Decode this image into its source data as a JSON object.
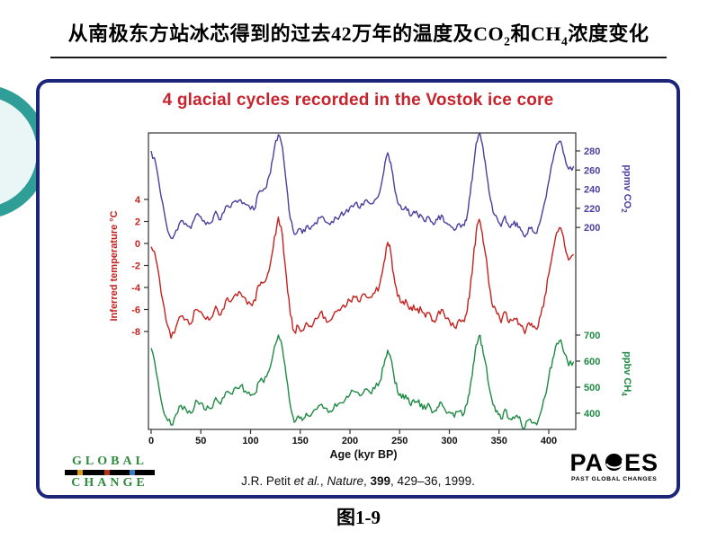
{
  "page": {
    "title": {
      "pre": "从南极东方站冰芯得到的过去42万年的温度及CO",
      "sub1": "2",
      "mid": "和CH",
      "sub2": "4",
      "post": "浓度变化"
    },
    "figure_caption": {
      "label": "图",
      "number": "1-9"
    }
  },
  "panel": {
    "chart_title": "4 glacial cycles recorded in the Vostok ice core",
    "citation": {
      "author": "J.R. Petit ",
      "etal": "et al.",
      "sep1": ", ",
      "journal": "Nature",
      "sep2": ", ",
      "volume": "399",
      "post": ", 429–36, 1999."
    },
    "logos": {
      "global_change": {
        "line1": "GLOBAL",
        "line2": "CHANGE"
      },
      "pages": {
        "name_pre": "PA",
        "name_post": "ES",
        "subtitle": "PAST GLOBAL CHANGES"
      }
    }
  },
  "chart_data": {
    "type": "line",
    "title": "4 glacial cycles recorded in the Vostok ice core",
    "title_color": "#c8232c",
    "grid": false,
    "legend": false,
    "x_axis": {
      "label": "Age (kyr BP)",
      "ticks": [
        0,
        50,
        100,
        150,
        200,
        250,
        300,
        350,
        400
      ],
      "range": [
        0,
        427
      ]
    },
    "axes": {
      "temperature": {
        "label": "Inferred temperature °C",
        "color": "#c5221f",
        "side": "left",
        "ticks": [
          4,
          2,
          0,
          -2,
          -4,
          -6,
          -8
        ],
        "range": [
          -9.5,
          4.5
        ]
      },
      "co2": {
        "label_pre": "ppmv CO",
        "label_sub": "2",
        "color": "#4a3f9f",
        "side": "right",
        "ticks": [
          280,
          260,
          240,
          220,
          200
        ],
        "range": [
          180,
          300
        ]
      },
      "ch4": {
        "label_pre": "ppbv CH",
        "label_sub": "4",
        "color": "#1e8a43",
        "side": "right",
        "ticks": [
          700,
          600,
          500,
          400
        ],
        "range": [
          340,
          720
        ]
      }
    },
    "ages": [
      0,
      5,
      10,
      15,
      20,
      25,
      30,
      35,
      40,
      45,
      50,
      55,
      60,
      65,
      70,
      75,
      80,
      85,
      90,
      95,
      100,
      105,
      108,
      112,
      116,
      120,
      124,
      128,
      132,
      136,
      140,
      144,
      148,
      152,
      156,
      160,
      165,
      170,
      175,
      180,
      185,
      190,
      195,
      200,
      205,
      210,
      215,
      220,
      225,
      230,
      234,
      238,
      241,
      244,
      248,
      252,
      256,
      260,
      264,
      268,
      272,
      276,
      280,
      284,
      288,
      292,
      296,
      300,
      305,
      310,
      315,
      318,
      321,
      324,
      327,
      330,
      333,
      336,
      340,
      344,
      348,
      352,
      356,
      360,
      364,
      368,
      372,
      376,
      380,
      384,
      388,
      392,
      396,
      400,
      404,
      408,
      412,
      416,
      420,
      425
    ],
    "series": [
      {
        "id": "co2",
        "name": "CO2 concentration (ppmv)",
        "axis": "co2",
        "color": "#4a3f9f",
        "values": [
          280,
          265,
          232,
          205,
          189,
          197,
          207,
          204,
          199,
          213,
          211,
          203,
          205,
          217,
          208,
          222,
          221,
          228,
          229,
          224,
          219,
          221,
          236,
          238,
          242,
          257,
          283,
          297,
          284,
          246,
          209,
          193,
          198,
          194,
          201,
          198,
          205,
          210,
          206,
          203,
          211,
          212,
          215,
          221,
          225,
          220,
          228,
          225,
          229,
          237,
          258,
          278,
          268,
          248,
          226,
          219,
          222,
          213,
          217,
          214,
          212,
          206,
          210,
          203,
          208,
          213,
          205,
          203,
          197,
          204,
          202,
          213,
          235,
          261,
          288,
          298,
          288,
          269,
          237,
          216,
          210,
          201,
          212,
          201,
          203,
          205,
          197,
          190,
          200,
          196,
          194,
          209,
          227,
          248,
          269,
          287,
          290,
          274,
          261,
          264
        ]
      },
      {
        "id": "temperature",
        "name": "Inferred temperature (°C)",
        "axis": "temperature",
        "color": "#c5221f",
        "values": [
          -0.3,
          -1.5,
          -4.5,
          -7,
          -8.6,
          -7.6,
          -6.6,
          -6.9,
          -7.3,
          -6,
          -6.2,
          -6.9,
          -6.8,
          -5.7,
          -6.5,
          -5.2,
          -5.3,
          -4.6,
          -4.5,
          -5,
          -5.5,
          -5.2,
          -3.8,
          -3.6,
          -3.2,
          -1.8,
          0.6,
          2.4,
          0.8,
          -3,
          -6.5,
          -8,
          -7.5,
          -7.9,
          -7.2,
          -7.5,
          -6.8,
          -6.3,
          -6.7,
          -7,
          -6.2,
          -6.1,
          -5.8,
          -5.2,
          -4.9,
          -5.3,
          -4.6,
          -4.9,
          -4.5,
          -3.7,
          -1.8,
          0.1,
          -0.8,
          -2.8,
          -4.8,
          -5.4,
          -5.1,
          -6,
          -5.6,
          -5.9,
          -6.1,
          -6.7,
          -6.3,
          -7,
          -6.5,
          -6,
          -6.8,
          -7,
          -7.6,
          -6.9,
          -7.1,
          -6.1,
          -4,
          -1.5,
          1,
          2.2,
          1,
          -0.8,
          -3.8,
          -5.8,
          -6.4,
          -7.2,
          -6.2,
          -7.2,
          -7,
          -6.8,
          -7.5,
          -8.2,
          -7.2,
          -7.6,
          -7.8,
          -6.5,
          -4.8,
          -2.8,
          -0.8,
          1,
          1.4,
          -0.2,
          -1.5,
          -1
        ]
      },
      {
        "id": "ch4",
        "name": "CH4 concentration (ppbv)",
        "axis": "ch4",
        "color": "#1e8a43",
        "values": [
          650,
          560,
          450,
          385,
          355,
          395,
          430,
          415,
          400,
          450,
          440,
          412,
          418,
          460,
          435,
          480,
          475,
          500,
          505,
          485,
          468,
          478,
          520,
          526,
          540,
          580,
          655,
          700,
          650,
          540,
          430,
          365,
          390,
          372,
          400,
          388,
          415,
          432,
          420,
          408,
          437,
          440,
          450,
          472,
          482,
          467,
          492,
          480,
          494,
          522,
          582,
          642,
          612,
          550,
          480,
          458,
          470,
          438,
          452,
          442,
          436,
          415,
          430,
          405,
          423,
          440,
          410,
          405,
          385,
          408,
          400,
          436,
          505,
          585,
          662,
          698,
          660,
          600,
          500,
          432,
          410,
          378,
          416,
          378,
          386,
          392,
          366,
          345,
          376,
          362,
          356,
          404,
          462,
          538,
          608,
          668,
          682,
          628,
          582,
          598
        ]
      }
    ]
  }
}
